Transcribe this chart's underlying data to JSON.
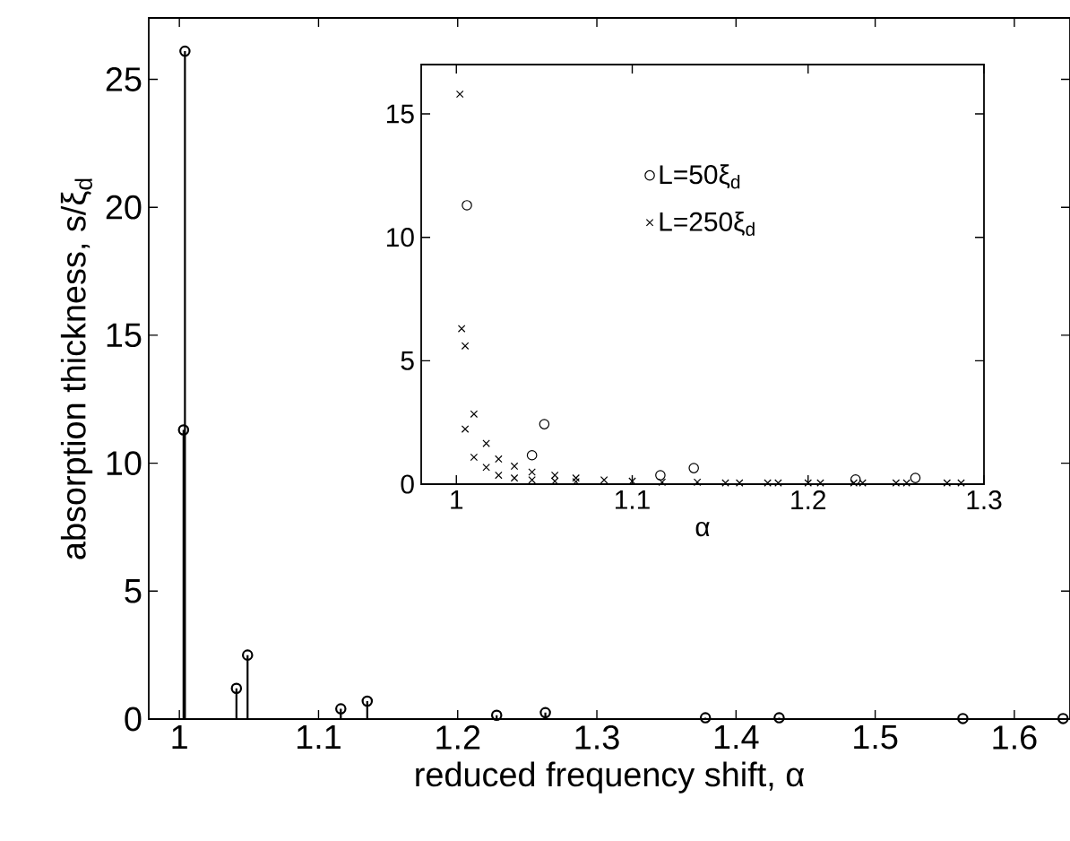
{
  "chart_data": [
    {
      "type": "lollipop",
      "xlabel": "reduced frequency shift,  α",
      "ylabel": "absorption thickness,  s/ξ$_{d}$",
      "x": [
        1.004,
        1.003,
        1.041,
        1.049,
        1.116,
        1.135,
        1.228,
        1.263,
        1.378,
        1.431,
        1.563,
        1.635
      ],
      "values": [
        26.1,
        11.3,
        1.2,
        2.5,
        0.4,
        0.7,
        0.15,
        0.25,
        0.05,
        0.05,
        0.02,
        0.02
      ],
      "color": "#000000",
      "marker": "circle",
      "xlim": [
        0.978,
        1.64
      ],
      "ylim": [
        0,
        27.4
      ],
      "xticks": [
        1,
        1.1,
        1.2,
        1.3,
        1.4,
        1.5,
        1.6
      ],
      "yticks": [
        0,
        5,
        10,
        15,
        20,
        25
      ]
    },
    {
      "type": "scatter",
      "xlabel": "α",
      "legend": "top",
      "xlim": [
        0.98,
        1.3
      ],
      "ylim": [
        0,
        17
      ],
      "xticks": [
        1,
        1.1,
        1.2,
        1.3
      ],
      "yticks": [
        0,
        5,
        10,
        15
      ],
      "series": [
        {
          "name": "L=50ξ$_{d}$",
          "color": "#000000",
          "marker": "circle",
          "x": [
            1.006,
            1.043,
            1.05,
            1.116,
            1.135,
            1.227,
            1.261
          ],
          "values": [
            11.3,
            1.17,
            2.43,
            0.36,
            0.65,
            0.19,
            0.25
          ]
        },
        {
          "name": "L=250ξ$_{d}$",
          "color": "#000000",
          "marker": "cross",
          "x": [
            1.002,
            1.003,
            1.005,
            1.005,
            1.01,
            1.01,
            1.017,
            1.017,
            1.024,
            1.024,
            1.033,
            1.033,
            1.043,
            1.043,
            1.056,
            1.056,
            1.068,
            1.068,
            1.084,
            1.1,
            1.117,
            1.137,
            1.153,
            1.161,
            1.177,
            1.183,
            1.2,
            1.207,
            1.226,
            1.231,
            1.25,
            1.256,
            1.279,
            1.287
          ],
          "values": [
            15.8,
            6.3,
            5.6,
            2.23,
            2.84,
            1.09,
            1.65,
            0.68,
            1.02,
            0.36,
            0.73,
            0.25,
            0.49,
            0.17,
            0.36,
            0.12,
            0.25,
            0.1,
            0.17,
            0.12,
            0.08,
            0.08,
            0.05,
            0.05,
            0.05,
            0.05,
            0.05,
            0.05,
            0.05,
            0.05,
            0.05,
            0.05,
            0.05,
            0.05
          ]
        }
      ]
    }
  ]
}
